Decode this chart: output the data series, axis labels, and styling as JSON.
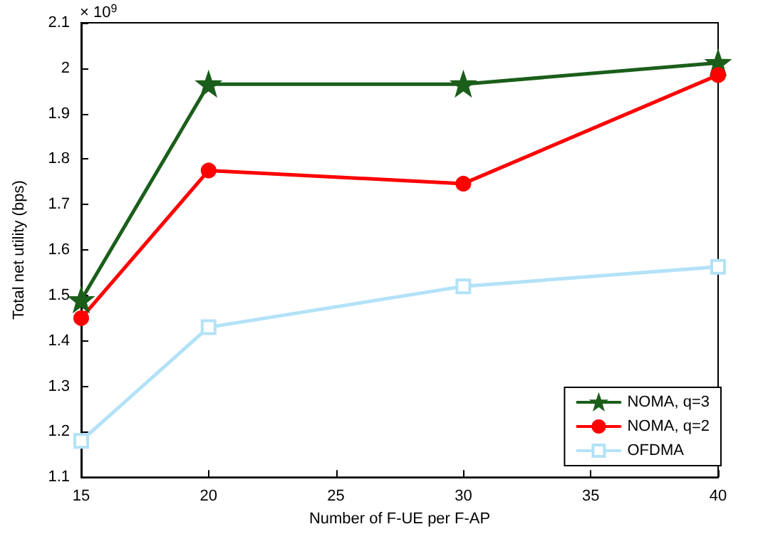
{
  "chart_data": {
    "type": "line",
    "xlabel": "Number of F-UE per F-AP",
    "ylabel": "Total net utility (bps)",
    "annotations": [
      "× 10$^{9}$"
    ],
    "x": [
      15,
      20,
      30,
      40
    ],
    "series": [
      {
        "name": "NOMA, q=3",
        "color": "#1a5e1a",
        "marker": "star",
        "values": [
          1.49,
          1.965,
          1.965,
          2.012
        ]
      },
      {
        "name": "NOMA, q=2",
        "color": "#ff0000",
        "marker": "circle",
        "values": [
          1.45,
          1.775,
          1.746,
          1.985
        ]
      },
      {
        "name": "OFDMA",
        "color": "#b3e2f7",
        "marker": "square",
        "values": [
          1.18,
          1.43,
          1.52,
          1.563
        ]
      }
    ],
    "xlim": [
      15,
      40
    ],
    "xticks": [
      15,
      20,
      25,
      30,
      35,
      40
    ],
    "ylim": [
      1.1,
      2.1
    ],
    "yticks": [
      1.1,
      1.2,
      1.3,
      1.4,
      1.5,
      1.6,
      1.7,
      1.8,
      1.9,
      2,
      2.1
    ],
    "grid": false,
    "legend": "bottom right",
    "line_style": "solid"
  }
}
